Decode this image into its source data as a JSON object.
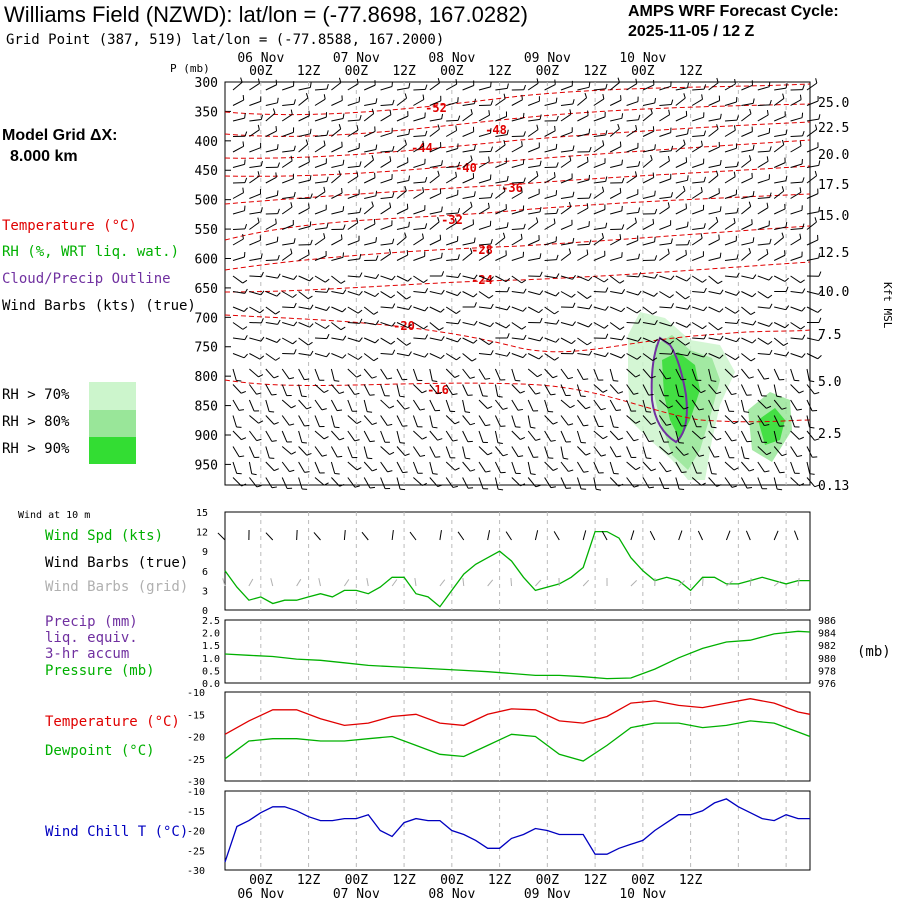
{
  "header": {
    "title": "Williams Field (NZWD):  lat/lon = (-77.8698, 167.0282)",
    "grid_point": "Grid Point (387, 519) lat/lon = (-77.8588, 167.2000)",
    "cycle_line1": "AMPS WRF Forecast Cycle:",
    "cycle_line2": "2025-11-05 / 12  Z"
  },
  "legend": {
    "model_grid_label": "Model Grid ΔX:",
    "model_grid_value": "8.000 km",
    "temperature": "Temperature (°C)",
    "rh": "RH (%, WRT liq. wat.)",
    "cloud": "Cloud/Precip Outline",
    "wind_barbs": "Wind Barbs (kts) (true)",
    "rh70": "RH > 70%",
    "rh80": "RH > 80%",
    "rh90": "RH > 90%",
    "wind10m": "Wind at 10 m",
    "wind_spd": "Wind Spd (kts)",
    "barbs_true": "Wind Barbs (true)",
    "barbs_grid": "Wind Barbs (grid)",
    "precip": "Precip (mm)",
    "liq": "liq. equiv.",
    "accum": "3-hr accum",
    "pressure": "Pressure (mb)",
    "mb": "(mb)",
    "temp2": "Temperature (°C)",
    "dewpoint": "Dewpoint (°C)",
    "windchill": "Wind Chill T (°C)",
    "p_axis": "P (mb)",
    "kft": "Kft MSL"
  },
  "colors": {
    "temperature": "#e00000",
    "rh_wind": "#00b000",
    "cloud": "#7030a0",
    "windchill": "#0000c0",
    "grid_barbs": "#b0b0b0",
    "rh70": "#ccf5cc",
    "rh80": "#99e699",
    "rh90": "#33dd33"
  },
  "time_axis": {
    "day_labels": [
      "06 Nov",
      "07 Nov",
      "08 Nov",
      "09 Nov",
      "10 Nov"
    ],
    "hour_labels": [
      "00Z",
      "12Z",
      "00Z",
      "12Z",
      "00Z",
      "12Z",
      "00Z",
      "12Z",
      "00Z",
      "12Z"
    ]
  },
  "chart_data": [
    {
      "type": "contour",
      "name": "vertical-cross-section",
      "pressure_levels_mb": [
        "300",
        "350",
        "400",
        "450",
        "500",
        "550",
        "600",
        "650",
        "700",
        "750",
        "800",
        "850",
        "900",
        "950"
      ],
      "height_kft": [
        "25.0",
        "22.5",
        "20.0",
        "17.5",
        "15.0",
        "12.5",
        "10.0",
        "7.5",
        "5.0",
        "2.5",
        "0.13"
      ],
      "temperature_contour_labels": [
        "-52",
        "-48",
        "-44",
        "-40",
        "-36",
        "-32",
        "-28",
        "-24",
        "-20",
        "-16"
      ]
    },
    {
      "type": "line",
      "name": "wind-speed",
      "ylim": [
        0,
        15
      ],
      "yticks": [
        "0",
        "3",
        "6",
        "9",
        "12",
        "15"
      ],
      "hours": [
        0,
        3,
        6,
        9,
        12,
        15,
        18,
        21,
        24,
        27,
        30,
        33,
        36,
        39,
        42,
        45,
        48,
        51,
        54,
        57,
        60,
        63,
        66,
        69,
        72,
        75,
        78,
        81,
        84,
        87,
        90,
        93,
        96,
        99,
        102,
        105,
        108,
        111,
        114,
        117,
        120,
        123,
        126,
        129,
        132,
        135,
        138,
        141,
        144,
        147
      ],
      "values": [
        6,
        3.5,
        1.5,
        2,
        1,
        1.5,
        1.5,
        2,
        2.5,
        2,
        3,
        3,
        2.5,
        3.5,
        5,
        5,
        2.5,
        2,
        0.5,
        3,
        5.5,
        7,
        8,
        9,
        7.5,
        5,
        3,
        3.5,
        4,
        5,
        6.5,
        12,
        12,
        11,
        8,
        6,
        4.5,
        5,
        4.5,
        3,
        5,
        5,
        4,
        4,
        4.5,
        5,
        4.5,
        4,
        4.5,
        4.5
      ]
    },
    {
      "type": "line",
      "name": "pressure",
      "ylim": [
        976,
        986
      ],
      "yticks_left": [
        "0.0",
        "0.5",
        "1.0",
        "1.5",
        "2.0",
        "2.5"
      ],
      "yticks_right": [
        "976",
        "978",
        "980",
        "982",
        "984",
        "986"
      ],
      "hours": [
        0,
        6,
        12,
        18,
        24,
        30,
        36,
        42,
        48,
        54,
        60,
        66,
        72,
        78,
        84,
        90,
        96,
        102,
        108,
        114,
        120,
        126,
        132,
        138,
        144,
        147
      ],
      "values": [
        980.6,
        980.4,
        980.2,
        979.8,
        979.6,
        979.2,
        978.8,
        978.6,
        978.4,
        978.2,
        978,
        977.8,
        977.5,
        977.2,
        977.2,
        977,
        976.7,
        976.8,
        978.2,
        980,
        981.5,
        982.5,
        982.8,
        983.8,
        984.2,
        984.1
      ]
    },
    {
      "type": "line",
      "name": "temperature-dewpoint",
      "ylim": [
        -30,
        -10
      ],
      "yticks": [
        "-10",
        "-15",
        "-20",
        "-25",
        "-30"
      ],
      "series": [
        {
          "name": "Temperature",
          "hours": [
            0,
            6,
            12,
            18,
            24,
            30,
            36,
            42,
            48,
            54,
            60,
            66,
            72,
            78,
            84,
            90,
            96,
            102,
            108,
            114,
            120,
            126,
            132,
            138,
            144,
            147
          ],
          "values": [
            -19.5,
            -16.5,
            -14,
            -14,
            -16,
            -17.5,
            -17,
            -15.5,
            -15,
            -17,
            -17.5,
            -15,
            -13.8,
            -14,
            -16.5,
            -17,
            -15.5,
            -12.5,
            -12,
            -13,
            -13.5,
            -12.5,
            -11.5,
            -12.5,
            -14.5,
            -15
          ]
        },
        {
          "name": "Dewpoint",
          "hours": [
            0,
            6,
            12,
            18,
            24,
            30,
            36,
            42,
            48,
            54,
            60,
            66,
            72,
            78,
            84,
            90,
            96,
            102,
            108,
            114,
            120,
            126,
            132,
            138,
            144,
            147
          ],
          "values": [
            -25,
            -21,
            -20.5,
            -20.5,
            -21,
            -21,
            -20.5,
            -20,
            -22,
            -24,
            -24.5,
            -22,
            -19.5,
            -20,
            -24,
            -25.5,
            -22,
            -18,
            -17,
            -17,
            -18,
            -17.5,
            -16.5,
            -17,
            -19,
            -20
          ]
        }
      ]
    },
    {
      "type": "line",
      "name": "wind-chill",
      "ylim": [
        -30,
        -10
      ],
      "yticks": [
        "-10",
        "-15",
        "-20",
        "-25",
        "-30"
      ],
      "hours": [
        0,
        3,
        6,
        9,
        12,
        15,
        18,
        21,
        24,
        27,
        30,
        33,
        36,
        39,
        42,
        45,
        48,
        51,
        54,
        57,
        60,
        63,
        66,
        69,
        72,
        75,
        78,
        81,
        84,
        87,
        90,
        93,
        96,
        99,
        102,
        105,
        108,
        111,
        114,
        117,
        120,
        123,
        126,
        129,
        132,
        135,
        138,
        141,
        144,
        147
      ],
      "values": [
        -28,
        -19,
        -17.5,
        -15.5,
        -14,
        -14,
        -15,
        -16.5,
        -17.5,
        -17.5,
        -17,
        -17,
        -16,
        -20,
        -21.5,
        -18,
        -17,
        -17.5,
        -17.5,
        -20,
        -21,
        -22.5,
        -24.5,
        -24.5,
        -22,
        -21,
        -19.5,
        -20,
        -21,
        -21,
        -21,
        -26,
        -26,
        -24.5,
        -23.5,
        -22.5,
        -20,
        -18,
        -16,
        -16,
        -15,
        -13,
        -12,
        -14,
        -15.5,
        -17,
        -17.5,
        -16,
        -17,
        -17
      ]
    }
  ]
}
